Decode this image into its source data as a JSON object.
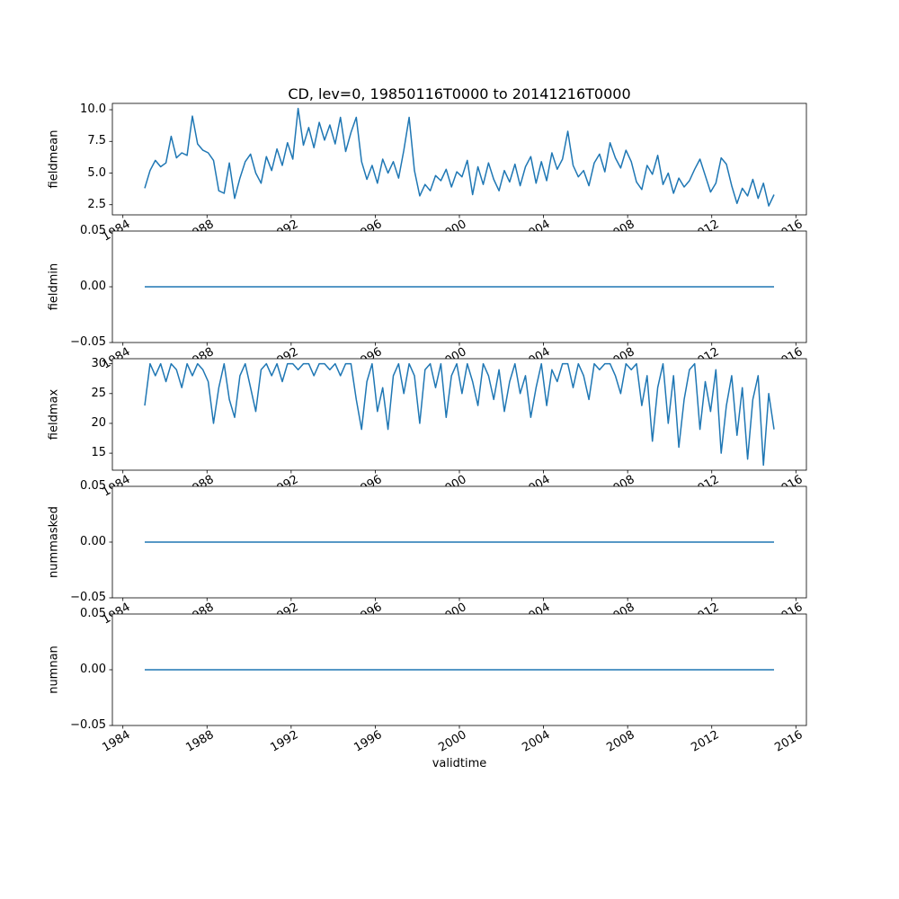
{
  "chart_data": {
    "type": "line",
    "figure_title": "CD, lev=0, 19850116T0000 to 20141216T0000",
    "xlabel": "validtime",
    "xlim": [
      1983.5,
      2016.5
    ],
    "x_ticks": [
      1984,
      1988,
      1992,
      1996,
      2000,
      2004,
      2008,
      2012,
      2016
    ],
    "line_color": "#1f77b4",
    "frame_color": "#000000",
    "grid": false,
    "legend": "none",
    "subplots": [
      {
        "ylabel": "fieldmean",
        "ylim": [
          1.7,
          10.5
        ],
        "yticks": [
          2.5,
          5.0,
          7.5,
          10.0
        ],
        "ytick_labels": [
          "2.5",
          "5.0",
          "7.5",
          "10.0"
        ],
        "x_start": 1985.04,
        "x_end": 2014.96,
        "values": [
          3.8,
          5.2,
          6.0,
          5.5,
          5.8,
          7.9,
          6.2,
          6.6,
          6.4,
          9.5,
          7.3,
          6.8,
          6.6,
          6.0,
          3.6,
          3.4,
          5.8,
          3.0,
          4.6,
          5.9,
          6.5,
          5.0,
          4.2,
          6.3,
          5.2,
          6.9,
          5.6,
          7.4,
          6.1,
          10.1,
          7.2,
          8.6,
          7.0,
          9.0,
          7.6,
          8.8,
          7.3,
          9.4,
          6.7,
          8.2,
          9.4,
          5.9,
          4.5,
          5.6,
          4.2,
          6.1,
          5.0,
          5.9,
          4.6,
          6.8,
          9.4,
          5.2,
          3.2,
          4.1,
          3.6,
          4.8,
          4.4,
          5.3,
          3.9,
          5.1,
          4.7,
          6.0,
          3.3,
          5.5,
          4.1,
          5.8,
          4.5,
          3.6,
          5.2,
          4.3,
          5.7,
          4.0,
          5.5,
          6.3,
          4.2,
          5.9,
          4.4,
          6.6,
          5.3,
          6.1,
          8.3,
          5.6,
          4.7,
          5.2,
          4.0,
          5.8,
          6.5,
          5.1,
          7.4,
          6.2,
          5.4,
          6.8,
          5.9,
          4.3,
          3.7,
          5.6,
          4.9,
          6.4,
          4.1,
          5.0,
          3.4,
          4.6,
          3.9,
          4.4,
          5.3,
          6.1,
          4.8,
          3.5,
          4.2,
          6.2,
          5.7,
          4.0,
          2.6,
          3.8,
          3.2,
          4.5,
          3.0,
          4.2,
          2.4,
          3.3
        ]
      },
      {
        "ylabel": "fieldmin",
        "ylim": [
          -0.05,
          0.05
        ],
        "yticks": [
          -0.05,
          0.0,
          0.05
        ],
        "ytick_labels": [
          "−0.05",
          "0.00",
          "0.05"
        ],
        "x_start": 1985.04,
        "x_end": 2014.96,
        "values": [
          0,
          0
        ]
      },
      {
        "ylabel": "fieldmax",
        "ylim": [
          12.15,
          30.85
        ],
        "yticks": [
          15,
          20,
          25,
          30
        ],
        "ytick_labels": [
          "15",
          "20",
          "25",
          "30"
        ],
        "x_start": 1985.04,
        "x_end": 2014.96,
        "values": [
          23,
          30,
          28,
          30,
          27,
          30,
          29,
          26,
          30,
          28,
          30,
          29,
          27,
          20,
          26,
          30,
          24,
          21,
          28,
          30,
          26,
          22,
          29,
          30,
          28,
          30,
          27,
          30,
          30,
          29,
          30,
          30,
          28,
          30,
          30,
          29,
          30,
          28,
          30,
          30,
          24,
          19,
          27,
          30,
          22,
          26,
          19,
          28,
          30,
          25,
          30,
          28,
          20,
          29,
          30,
          26,
          30,
          21,
          28,
          30,
          25,
          30,
          27,
          23,
          30,
          28,
          24,
          29,
          22,
          27,
          30,
          25,
          28,
          21,
          26,
          30,
          23,
          29,
          27,
          30,
          30,
          26,
          30,
          28,
          24,
          30,
          29,
          30,
          30,
          28,
          25,
          30,
          29,
          30,
          23,
          28,
          17,
          26,
          30,
          20,
          28,
          16,
          24,
          29,
          30,
          19,
          27,
          22,
          29,
          15,
          23,
          28,
          18,
          26,
          14,
          24,
          28,
          13,
          25,
          19
        ]
      },
      {
        "ylabel": "nummasked",
        "ylim": [
          -0.05,
          0.05
        ],
        "yticks": [
          -0.05,
          0.0,
          0.05
        ],
        "ytick_labels": [
          "−0.05",
          "0.00",
          "0.05"
        ],
        "x_start": 1985.04,
        "x_end": 2014.96,
        "values": [
          0,
          0
        ]
      },
      {
        "ylabel": "numnan",
        "ylim": [
          -0.05,
          0.05
        ],
        "yticks": [
          -0.05,
          0.0,
          0.05
        ],
        "ytick_labels": [
          "−0.05",
          "0.00",
          "0.05"
        ],
        "x_start": 1985.04,
        "x_end": 2014.96,
        "values": [
          0,
          0
        ]
      }
    ]
  }
}
